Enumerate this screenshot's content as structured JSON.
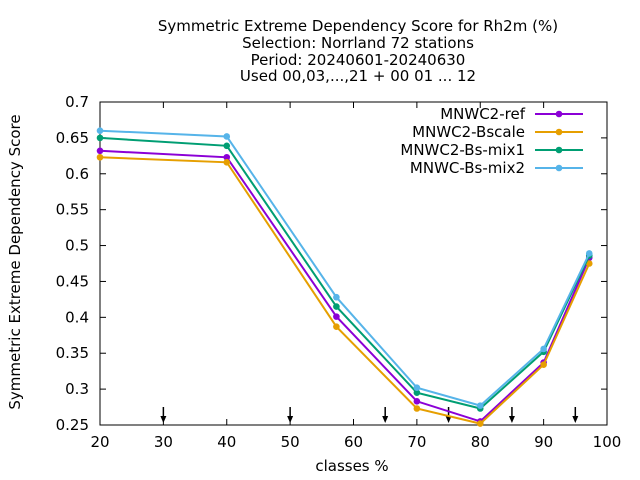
{
  "chart_data": {
    "type": "line",
    "title_lines": [
      "Symmetric Extreme Dependency Score  for Rh2m (%)",
      "Selection: Norrland     72 stations",
      "Period: 20240601-20240630",
      "Used 00,03,...,21 + 00 01 ... 12"
    ],
    "xlabel": "classes %",
    "ylabel": "Symmetric Extreme Dependency Score",
    "xlim": [
      20,
      100
    ],
    "ylim": [
      0.25,
      0.7
    ],
    "xticks": [
      20,
      30,
      40,
      50,
      60,
      70,
      80,
      90,
      100
    ],
    "xtick_labels": [
      "20",
      "30",
      "40",
      "50",
      "60",
      "70",
      "80",
      "90",
      "100"
    ],
    "yticks": [
      0.25,
      0.3,
      0.35,
      0.4,
      0.45,
      0.5,
      0.55,
      0.6,
      0.65,
      0.7
    ],
    "ytick_labels": [
      "0.25",
      "0.3",
      "0.35",
      "0.4",
      "0.45",
      "0.5",
      "0.55",
      "0.6",
      "0.65",
      "0.7"
    ],
    "grid": false,
    "legend_position": "top-right",
    "arrow_markers_x": [
      30,
      50,
      65,
      75,
      85,
      95
    ],
    "series": [
      {
        "name": "MNWC2-ref",
        "color": "#8b00d6",
        "x": [
          20,
          40,
          57.3,
          70,
          80,
          90,
          97.2
        ],
        "y": [
          0.632,
          0.623,
          0.401,
          0.283,
          0.255,
          0.337,
          0.483
        ]
      },
      {
        "name": "MNWC2-Bscale",
        "color": "#e69f00",
        "x": [
          20,
          40,
          57.3,
          70,
          80,
          90,
          97.2
        ],
        "y": [
          0.623,
          0.616,
          0.387,
          0.273,
          0.252,
          0.334,
          0.475
        ]
      },
      {
        "name": "MNWC2-Bs-mix1",
        "color": "#009e73",
        "x": [
          20,
          40,
          57.3,
          70,
          80,
          90,
          97.2
        ],
        "y": [
          0.65,
          0.639,
          0.415,
          0.295,
          0.273,
          0.352,
          0.486
        ]
      },
      {
        "name": "MNWC-Bs-mix2",
        "color": "#56b4e9",
        "x": [
          20,
          40,
          57.3,
          70,
          80,
          90,
          97.2
        ],
        "y": [
          0.66,
          0.652,
          0.428,
          0.302,
          0.277,
          0.356,
          0.489
        ]
      }
    ]
  }
}
